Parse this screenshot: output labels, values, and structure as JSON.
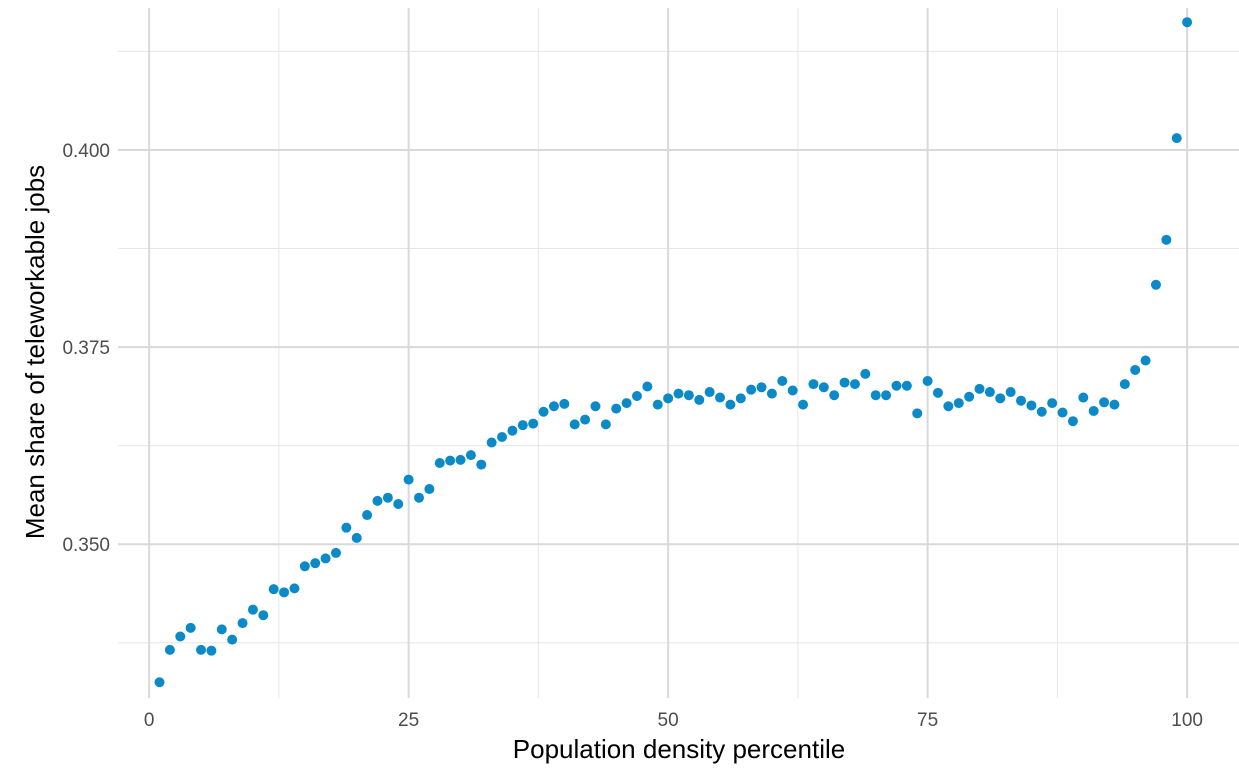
{
  "chart_data": {
    "type": "scatter",
    "title": "",
    "xlabel": "Population density percentile",
    "ylabel": "Mean share of teleworkable jobs",
    "xlim": [
      -3,
      105
    ],
    "ylim": [
      0.3305,
      0.418
    ],
    "x_ticks": [
      0,
      25,
      50,
      75,
      100
    ],
    "x_tick_labels": [
      "0",
      "25",
      "50",
      "75",
      "100"
    ],
    "x_minor_ticks": [
      12.5,
      37.5,
      62.5,
      87.5
    ],
    "y_ticks": [
      0.35,
      0.375,
      0.4
    ],
    "y_tick_labels": [
      "0.350",
      "0.375",
      "0.400"
    ],
    "y_minor_ticks": [
      0.3375,
      0.3625,
      0.3875,
      0.4125
    ],
    "grid": true,
    "legend": "none",
    "point_color": "#0c8ac8",
    "grid_major_color": "#d9d9d9",
    "grid_minor_color": "#e6e6e6",
    "series": [
      {
        "x": [
          1,
          2,
          3,
          4,
          5,
          6,
          7,
          8,
          9,
          10,
          11,
          12,
          13,
          14,
          15,
          16,
          17,
          18,
          19,
          20,
          21,
          22,
          23,
          24,
          25,
          26,
          27,
          28,
          29,
          30,
          31,
          32,
          33,
          34,
          35,
          36,
          37,
          38,
          39,
          40,
          41,
          42,
          43,
          44,
          45,
          46,
          47,
          48,
          49,
          50,
          51,
          52,
          53,
          54,
          55,
          56,
          57,
          58,
          59,
          60,
          61,
          62,
          63,
          64,
          65,
          66,
          67,
          68,
          69,
          70,
          71,
          72,
          73,
          74,
          75,
          76,
          77,
          78,
          79,
          80,
          81,
          82,
          83,
          84,
          85,
          86,
          87,
          88,
          89,
          90,
          91,
          92,
          93,
          94,
          95,
          96,
          97,
          98,
          99,
          100
        ],
        "values": [
          0.3325,
          0.3366,
          0.3383,
          0.3394,
          0.3366,
          0.3365,
          0.3392,
          0.3379,
          0.34,
          0.3417,
          0.341,
          0.3443,
          0.3439,
          0.3444,
          0.3472,
          0.3476,
          0.3482,
          0.3489,
          0.3521,
          0.3508,
          0.3537,
          0.3555,
          0.3559,
          0.3551,
          0.3582,
          0.3559,
          0.357,
          0.3603,
          0.3606,
          0.3607,
          0.3613,
          0.3601,
          0.3629,
          0.3636,
          0.3644,
          0.3651,
          0.3653,
          0.3668,
          0.3675,
          0.3678,
          0.3652,
          0.3658,
          0.3675,
          0.3652,
          0.3672,
          0.3679,
          0.3688,
          0.37,
          0.3677,
          0.3685,
          0.3691,
          0.3689,
          0.3683,
          0.3693,
          0.3686,
          0.3677,
          0.3685,
          0.3696,
          0.3699,
          0.3691,
          0.3707,
          0.3695,
          0.3677,
          0.3703,
          0.3699,
          0.3689,
          0.3705,
          0.3703,
          0.3716,
          0.3689,
          0.3689,
          0.3701,
          0.3701,
          0.3666,
          0.3707,
          0.3692,
          0.3675,
          0.3679,
          0.3687,
          0.3697,
          0.3693,
          0.3685,
          0.3693,
          0.3682,
          0.3676,
          0.3668,
          0.3679,
          0.3667,
          0.3656,
          0.3686,
          0.3669,
          0.368,
          0.3677,
          0.3703,
          0.3721,
          0.3733,
          0.3829,
          0.3886,
          0.4015,
          0.4162
        ]
      }
    ]
  }
}
